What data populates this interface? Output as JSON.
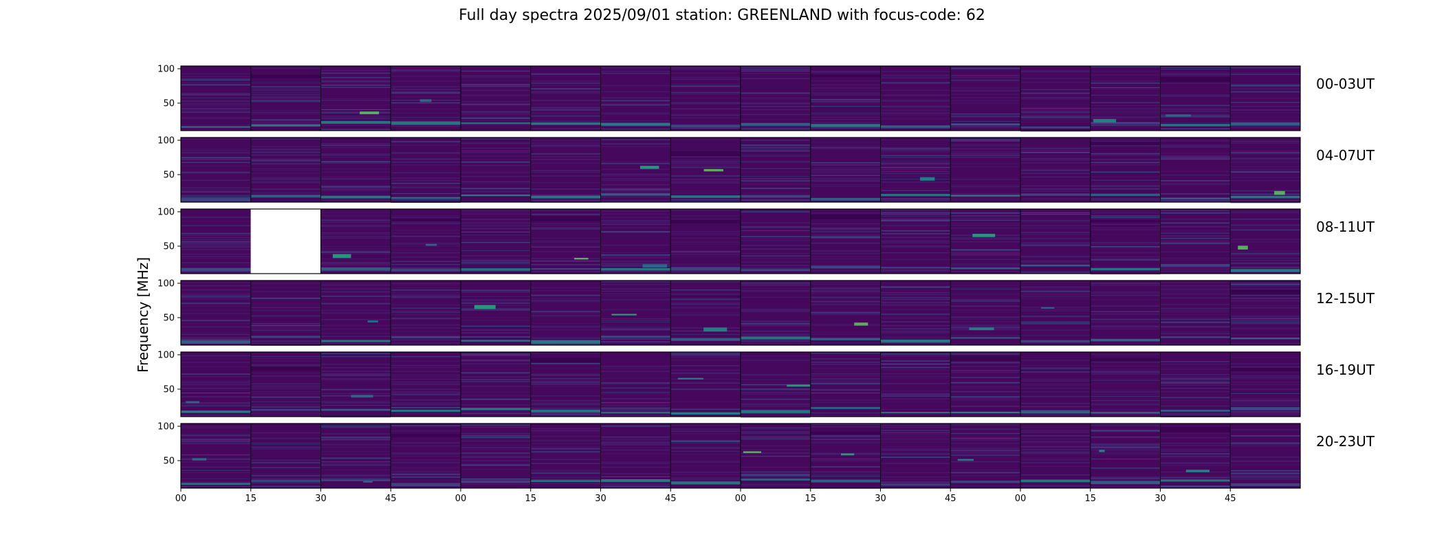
{
  "chart_data": {
    "type": "heatmap",
    "title": "Full day spectra 2025/09/01 station: GREENLAND with focus-code: 62",
    "ylabel": "Frequency [MHz]",
    "xlabel": "",
    "yticks": [
      "100",
      "50"
    ],
    "xticks": [
      "00",
      "15",
      "30",
      "45",
      "00",
      "15",
      "30",
      "45",
      "00",
      "15",
      "30",
      "45",
      "00",
      "15",
      "30",
      "45"
    ],
    "row_labels": [
      "00-03UT",
      "04-07UT",
      "08-11UT",
      "12-15UT",
      "16-19UT",
      "20-23UT"
    ],
    "panels_per_row": 16,
    "missing_panels": [
      {
        "row": 2,
        "col": 1
      }
    ],
    "colormap": [
      "#440154",
      "#482475",
      "#3b528b",
      "#2c728e",
      "#21918c",
      "#27ad81",
      "#5ec962",
      "#aadc32"
    ],
    "background_color": "#46085c",
    "grid": false
  }
}
